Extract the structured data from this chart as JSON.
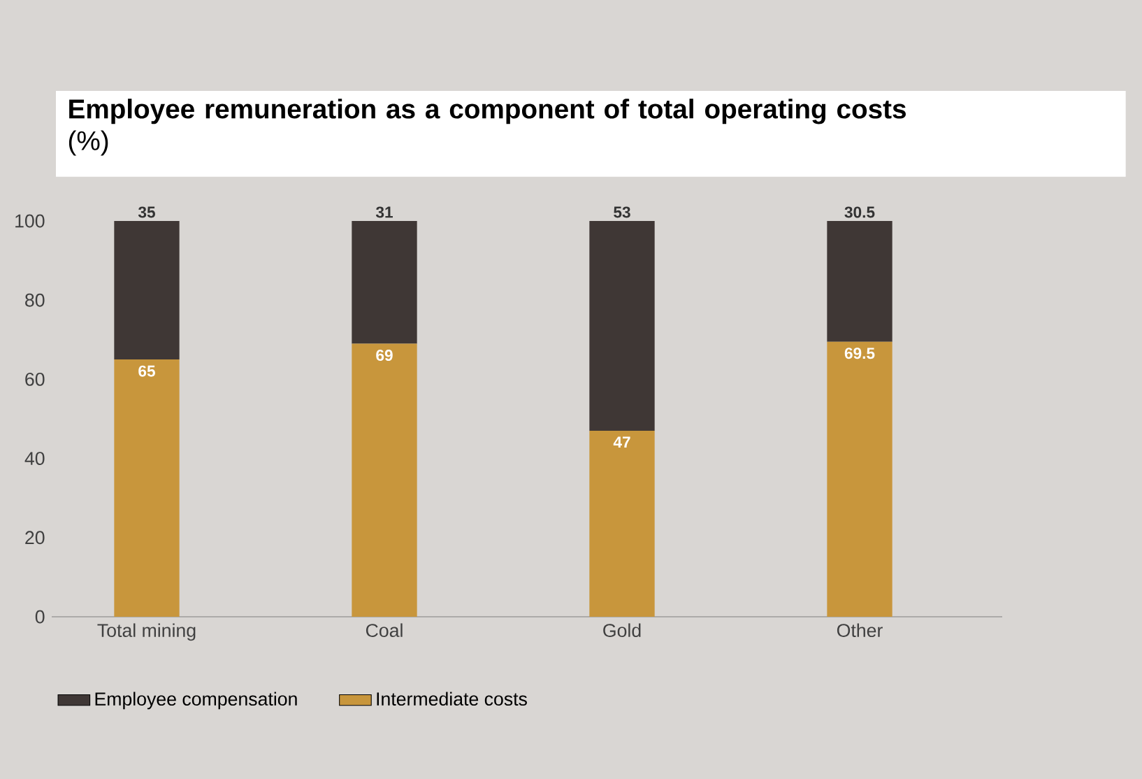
{
  "chart_data": {
    "type": "bar",
    "title": "**Employee remuneration as a component of total operating costs** (%)",
    "categories": [
      "Total mining",
      "Coal",
      "Gold",
      "Other"
    ],
    "series": [
      {
        "name": "Intermediate costs",
        "color": "#c8963c",
        "values": [
          65,
          69,
          47,
          69.5
        ]
      },
      {
        "name": "Employee compensation",
        "color": "#3f3735",
        "values": [
          35,
          31,
          53,
          30.5
        ]
      }
    ],
    "stacked": true,
    "ylim": [
      0,
      100
    ],
    "yticks": [
      0,
      20,
      40,
      60,
      80,
      100
    ],
    "data_labels": true,
    "legend": "bottom"
  }
}
